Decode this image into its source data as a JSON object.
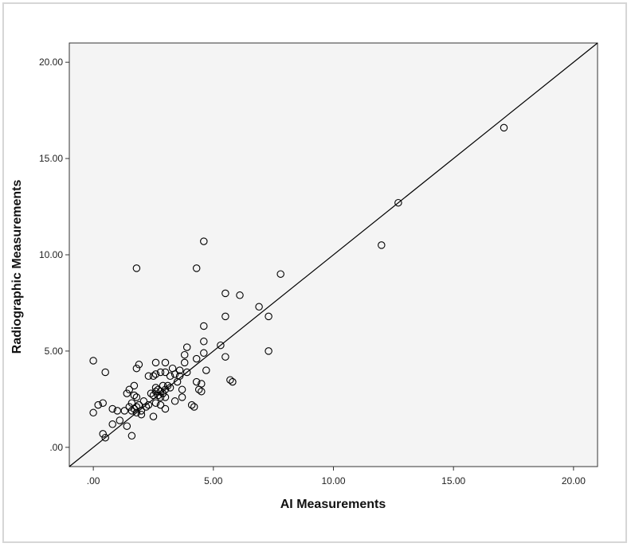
{
  "chart_data": {
    "type": "scatter",
    "title": "",
    "xlabel": "AI Measurements",
    "ylabel": "Radiographic Measurements",
    "xlim": [
      -1.0,
      21.0
    ],
    "ylim": [
      -1.0,
      21.0
    ],
    "x_ticks": [
      ".00",
      "5.00",
      "10.00",
      "15.00",
      "20.00"
    ],
    "y_ticks": [
      ".00",
      "5.00",
      "10.00",
      "15.00",
      "20.00"
    ],
    "x_tick_values": [
      0,
      5,
      10,
      15,
      20
    ],
    "y_tick_values": [
      0,
      5,
      10,
      15,
      20
    ],
    "reference_line": {
      "type": "identity",
      "from": [
        -1.0,
        -1.0
      ],
      "to": [
        21.0,
        21.0
      ]
    },
    "grid": false,
    "legend": "none",
    "colors": {
      "plot_background": "#f4f4f4",
      "marker_stroke": "#000000",
      "line": "#000000"
    },
    "points": [
      [
        0.0,
        4.5
      ],
      [
        0.0,
        1.8
      ],
      [
        0.2,
        2.2
      ],
      [
        0.4,
        2.3
      ],
      [
        0.4,
        0.7
      ],
      [
        0.5,
        0.5
      ],
      [
        0.5,
        3.9
      ],
      [
        0.8,
        1.2
      ],
      [
        0.8,
        2.0
      ],
      [
        1.0,
        1.9
      ],
      [
        1.1,
        1.4
      ],
      [
        1.3,
        1.9
      ],
      [
        1.4,
        2.8
      ],
      [
        1.4,
        1.1
      ],
      [
        1.5,
        3.0
      ],
      [
        1.5,
        2.1
      ],
      [
        1.6,
        0.6
      ],
      [
        1.6,
        1.9
      ],
      [
        1.6,
        2.3
      ],
      [
        1.7,
        3.2
      ],
      [
        1.7,
        2.7
      ],
      [
        1.7,
        2.0
      ],
      [
        1.8,
        1.8
      ],
      [
        1.8,
        2.1
      ],
      [
        1.8,
        2.6
      ],
      [
        1.8,
        4.1
      ],
      [
        1.8,
        9.3
      ],
      [
        1.9,
        4.3
      ],
      [
        1.9,
        2.2
      ],
      [
        2.0,
        1.9
      ],
      [
        2.0,
        1.7
      ],
      [
        2.1,
        2.4
      ],
      [
        2.2,
        2.1
      ],
      [
        2.3,
        2.2
      ],
      [
        2.3,
        3.7
      ],
      [
        2.4,
        2.8
      ],
      [
        2.5,
        3.7
      ],
      [
        2.5,
        1.6
      ],
      [
        2.5,
        2.7
      ],
      [
        2.6,
        2.9
      ],
      [
        2.6,
        3.1
      ],
      [
        2.6,
        3.8
      ],
      [
        2.6,
        4.4
      ],
      [
        2.6,
        2.3
      ],
      [
        2.7,
        3.0
      ],
      [
        2.7,
        2.7
      ],
      [
        2.8,
        3.9
      ],
      [
        2.8,
        2.9
      ],
      [
        2.8,
        2.6
      ],
      [
        2.8,
        2.2
      ],
      [
        2.9,
        2.8
      ],
      [
        2.9,
        3.2
      ],
      [
        3.0,
        2.6
      ],
      [
        3.0,
        3.0
      ],
      [
        3.0,
        3.9
      ],
      [
        3.0,
        4.4
      ],
      [
        3.0,
        2.0
      ],
      [
        3.1,
        3.2
      ],
      [
        3.2,
        3.7
      ],
      [
        3.2,
        3.1
      ],
      [
        3.3,
        4.1
      ],
      [
        3.4,
        2.4
      ],
      [
        3.4,
        3.8
      ],
      [
        3.5,
        3.4
      ],
      [
        3.6,
        3.7
      ],
      [
        3.6,
        4.0
      ],
      [
        3.7,
        2.6
      ],
      [
        3.7,
        3.0
      ],
      [
        3.8,
        4.4
      ],
      [
        3.8,
        4.8
      ],
      [
        3.9,
        3.9
      ],
      [
        3.9,
        5.2
      ],
      [
        4.1,
        2.2
      ],
      [
        4.2,
        2.1
      ],
      [
        4.3,
        4.6
      ],
      [
        4.3,
        3.4
      ],
      [
        4.3,
        9.3
      ],
      [
        4.4,
        3.0
      ],
      [
        4.5,
        2.9
      ],
      [
        4.5,
        3.3
      ],
      [
        4.6,
        5.5
      ],
      [
        4.6,
        6.3
      ],
      [
        4.6,
        10.7
      ],
      [
        4.6,
        4.9
      ],
      [
        4.7,
        4.0
      ],
      [
        5.3,
        5.3
      ],
      [
        5.5,
        8.0
      ],
      [
        5.5,
        6.8
      ],
      [
        5.5,
        4.7
      ],
      [
        5.7,
        3.5
      ],
      [
        5.8,
        3.4
      ],
      [
        6.1,
        7.9
      ],
      [
        6.9,
        7.3
      ],
      [
        7.3,
        6.8
      ],
      [
        7.3,
        5.0
      ],
      [
        7.8,
        9.0
      ],
      [
        12.0,
        10.5
      ],
      [
        12.7,
        12.7
      ],
      [
        17.1,
        16.6
      ]
    ]
  }
}
